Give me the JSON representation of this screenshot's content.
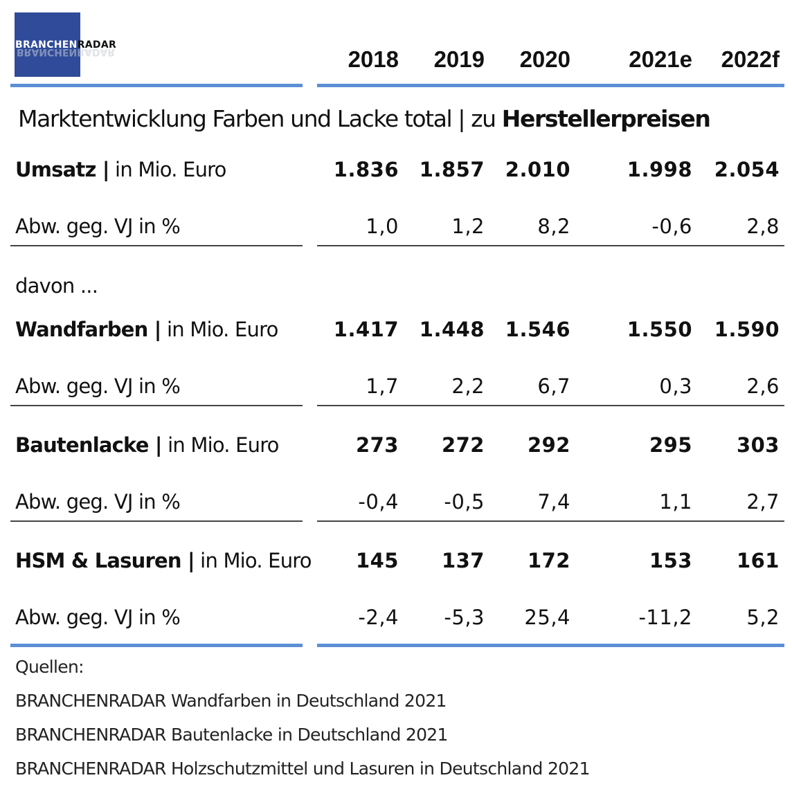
{
  "logo": {
    "part1": "BRANCHEN",
    "part2": "RADAR",
    "reflection": "BRANCHENRADAR"
  },
  "colors": {
    "logo_bg": "#2f4b9a",
    "rule_accent": "#5b8fd6"
  },
  "years": [
    "2018",
    "2019",
    "2020",
    "2021e",
    "2022f"
  ],
  "subtitle": {
    "normal": "Marktentwicklung Farben und Lacke total | zu ",
    "bold": "Herstellerpreisen"
  },
  "rows": {
    "umsatz": {
      "label_bold": "Umsatz |",
      "label_normal": " in Mio. Euro",
      "values": [
        "1.836",
        "1.857",
        "2.010",
        "1.998",
        "2.054"
      ]
    },
    "umsatz_change": {
      "label": "Abw. geg. VJ in %",
      "values": [
        "1,0",
        "1,2",
        "8,2",
        "-0,6",
        "2,8"
      ]
    },
    "davon": {
      "label": "davon ..."
    },
    "wandfarben": {
      "label_bold": "Wandfarben |",
      "label_normal": " in Mio. Euro",
      "values": [
        "1.417",
        "1.448",
        "1.546",
        "1.550",
        "1.590"
      ]
    },
    "wandfarben_change": {
      "label": "Abw. geg. VJ in %",
      "values": [
        "1,7",
        "2,2",
        "6,7",
        "0,3",
        "2,6"
      ]
    },
    "bautenlacke": {
      "label_bold": "Bautenlacke |",
      "label_normal": " in Mio. Euro",
      "values": [
        "273",
        "272",
        "292",
        "295",
        "303"
      ]
    },
    "bautenlacke_change": {
      "label": "Abw. geg. VJ in %",
      "values": [
        "-0,4",
        "-0,5",
        "7,4",
        "1,1",
        "2,7"
      ]
    },
    "hsm": {
      "label_bold": "HSM & Lasuren |",
      "label_normal": " in Mio. Euro",
      "values": [
        "145",
        "137",
        "172",
        "153",
        "161"
      ]
    },
    "hsm_change": {
      "label": "Abw. geg. VJ in %",
      "values": [
        "-2,4",
        "-5,3",
        "25,4",
        "-11,2",
        "5,2"
      ]
    }
  },
  "sources": {
    "heading": "Quellen:",
    "items": [
      "BRANCHENRADAR Wandfarben in Deutschland 2021",
      "BRANCHENRADAR Bautenlacke in Deutschland 2021",
      "BRANCHENRADAR Holzschutzmittel und Lasuren in Deutschland 2021"
    ]
  }
}
